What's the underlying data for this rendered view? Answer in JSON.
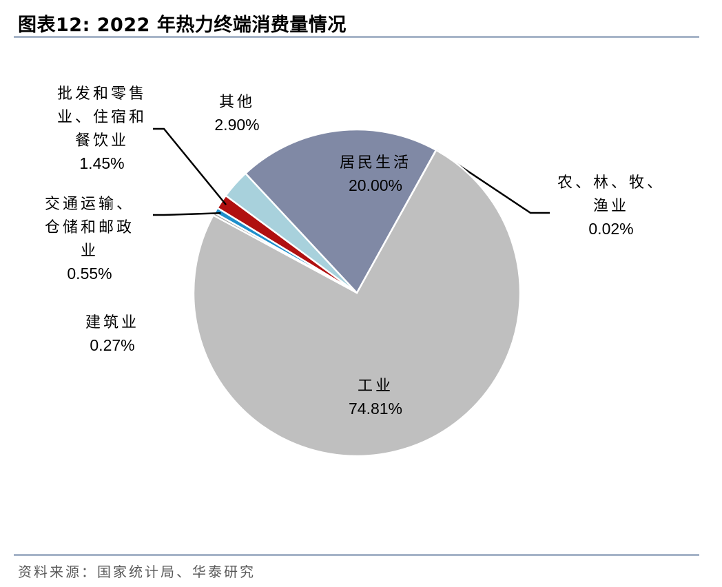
{
  "title": "图表12:  2022 年热力终端消费量情况",
  "source": "资料来源：国家统计局、华泰研究",
  "colors": {
    "industry": "#bfbfbf",
    "residential": "#8089a5",
    "other": "#a8d1dc",
    "wholesale": "#b01010",
    "transport": "#1f8fcb",
    "construction": "#a6a6a6",
    "agriculture": "#595959",
    "rule": "#a6b4c8"
  },
  "chart_data": {
    "type": "pie",
    "title": "",
    "slices": [
      {
        "key": "agriculture",
        "label_lines": [
          "农、林、牧、",
          "渔业"
        ],
        "value": 0.02,
        "pct": "0.02%"
      },
      {
        "key": "industry",
        "label_lines": [
          "工业"
        ],
        "value": 74.81,
        "pct": "74.81%"
      },
      {
        "key": "construction",
        "label_lines": [
          "建筑业"
        ],
        "value": 0.27,
        "pct": "0.27%"
      },
      {
        "key": "transport",
        "label_lines": [
          "交通运输、",
          "仓储和邮政",
          "业"
        ],
        "value": 0.55,
        "pct": "0.55%"
      },
      {
        "key": "wholesale",
        "label_lines": [
          "批发和零售",
          "业、住宿和",
          "餐饮业"
        ],
        "value": 1.45,
        "pct": "1.45%"
      },
      {
        "key": "other",
        "label_lines": [
          "其他"
        ],
        "value": 2.9,
        "pct": "2.90%"
      },
      {
        "key": "residential",
        "label_lines": [
          "居民生活"
        ],
        "value": 20.0,
        "pct": "20.00%"
      }
    ]
  }
}
